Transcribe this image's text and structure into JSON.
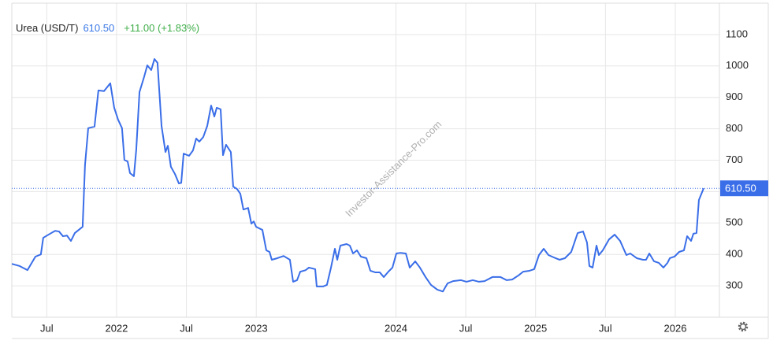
{
  "chart_data": {
    "type": "line",
    "current_price": "610.50",
    "change": "+11.00 (+1.83%)",
    "watermark": "Investor-Assistance-Pro.com",
    "xlim": [
      2021.25,
      2026.316
    ],
    "xticks": [
      {
        "value": 2021.5,
        "label": "Jul"
      },
      2022,
      {
        "value": 2022.5,
        "label": "Jul"
      },
      2023,
      2024,
      {
        "value": 2024.5,
        "label": "Jul"
      },
      2025,
      {
        "value": 2025.5,
        "label": "Jul"
      },
      2026
    ],
    "ylim": [
      200,
      1200
    ],
    "yticks": [
      300,
      400,
      500,
      600,
      700,
      800,
      900,
      1000,
      1100
    ],
    "grid": true,
    "x": [
      2021.25,
      2021.306,
      2021.362,
      2021.419,
      2021.458,
      2021.475,
      2021.532,
      2021.56,
      2021.588,
      2021.616,
      2021.645,
      2021.673,
      2021.701,
      2021.757,
      2021.774,
      2021.797,
      2021.842,
      2021.87,
      2021.91,
      2021.955,
      2021.983,
      2022.011,
      2022.039,
      2022.056,
      2022.079,
      2022.096,
      2022.124,
      2022.141,
      2022.164,
      2022.197,
      2022.22,
      2022.248,
      2022.271,
      2022.293,
      2022.322,
      2022.35,
      2022.367,
      2022.389,
      2022.418,
      2022.446,
      2022.463,
      2022.48,
      2022.519,
      2022.547,
      2022.57,
      2022.592,
      2022.621,
      2022.649,
      2022.677,
      2022.7,
      2022.717,
      2022.745,
      2022.762,
      2022.784,
      2022.818,
      2022.835,
      2022.863,
      2022.886,
      2022.908,
      2022.942,
      2022.965,
      2022.982,
      2022.999,
      2023.044,
      2023.072,
      2023.095,
      2023.111,
      2023.151,
      2023.196,
      2023.241,
      2023.264,
      2023.292,
      2023.315,
      2023.354,
      2023.377,
      2023.422,
      2023.433,
      2023.478,
      2023.506,
      2023.535,
      2023.563,
      2023.58,
      2023.602,
      2023.647,
      2023.67,
      2023.693,
      2023.721,
      2023.749,
      2023.789,
      2023.817,
      2023.851,
      2023.884,
      2023.913,
      2023.946,
      2023.975,
      2024.003,
      2024.031,
      2024.071,
      2024.099,
      2024.138,
      2024.172,
      2024.212,
      2024.251,
      2024.296,
      2024.336,
      2024.37,
      2024.409,
      2024.466,
      2024.505,
      2024.55,
      2024.595,
      2024.635,
      2024.691,
      2024.748,
      2024.793,
      2024.832,
      2024.877,
      2024.911,
      2024.956,
      2024.99,
      2025.024,
      2025.058,
      2025.092,
      2025.143,
      2025.171,
      2025.21,
      2025.255,
      2025.301,
      2025.34,
      2025.368,
      2025.385,
      2025.408,
      2025.436,
      2025.453,
      2025.481,
      2025.526,
      2025.566,
      2025.605,
      2025.65,
      2025.678,
      2025.724,
      2025.769,
      2025.791,
      2025.814,
      2025.848,
      2025.882,
      2025.915,
      2025.944,
      2025.961,
      2025.994,
      2026.028,
      2026.062,
      2026.085,
      2026.113,
      2026.13,
      2026.152,
      2026.169,
      2026.203
    ],
    "series": [
      {
        "name": "Urea (USD/T)",
        "color": "#3a6ee8",
        "values": [
          370,
          363,
          350,
          393,
          400,
          453,
          468,
          475,
          473,
          458,
          460,
          443,
          468,
          488,
          684,
          802,
          807,
          922,
          920,
          945,
          867,
          829,
          802,
          701,
          696,
          659,
          649,
          734,
          917,
          965,
          1002,
          987,
          1022,
          1010,
          809,
          726,
          746,
          679,
          656,
          626,
          628,
          721,
          714,
          731,
          769,
          759,
          774,
          809,
          874,
          839,
          867,
          862,
          716,
          749,
          726,
          616,
          608,
          593,
          543,
          548,
          498,
          505,
          488,
          478,
          413,
          408,
          383,
          388,
          395,
          383,
          313,
          318,
          345,
          350,
          358,
          353,
          298,
          298,
          303,
          358,
          418,
          383,
          428,
          433,
          428,
          403,
          413,
          393,
          388,
          348,
          343,
          343,
          328,
          345,
          358,
          403,
          405,
          403,
          358,
          378,
          358,
          328,
          303,
          288,
          282,
          308,
          315,
          318,
          313,
          318,
          313,
          315,
          328,
          328,
          318,
          320,
          333,
          345,
          348,
          353,
          398,
          418,
          398,
          388,
          383,
          388,
          408,
          468,
          473,
          438,
          363,
          358,
          428,
          398,
          413,
          448,
          463,
          443,
          398,
          403,
          388,
          383,
          383,
          403,
          378,
          373,
          358,
          373,
          388,
          393,
          408,
          413,
          458,
          443,
          466,
          468,
          573,
          610.5
        ]
      }
    ]
  }
}
